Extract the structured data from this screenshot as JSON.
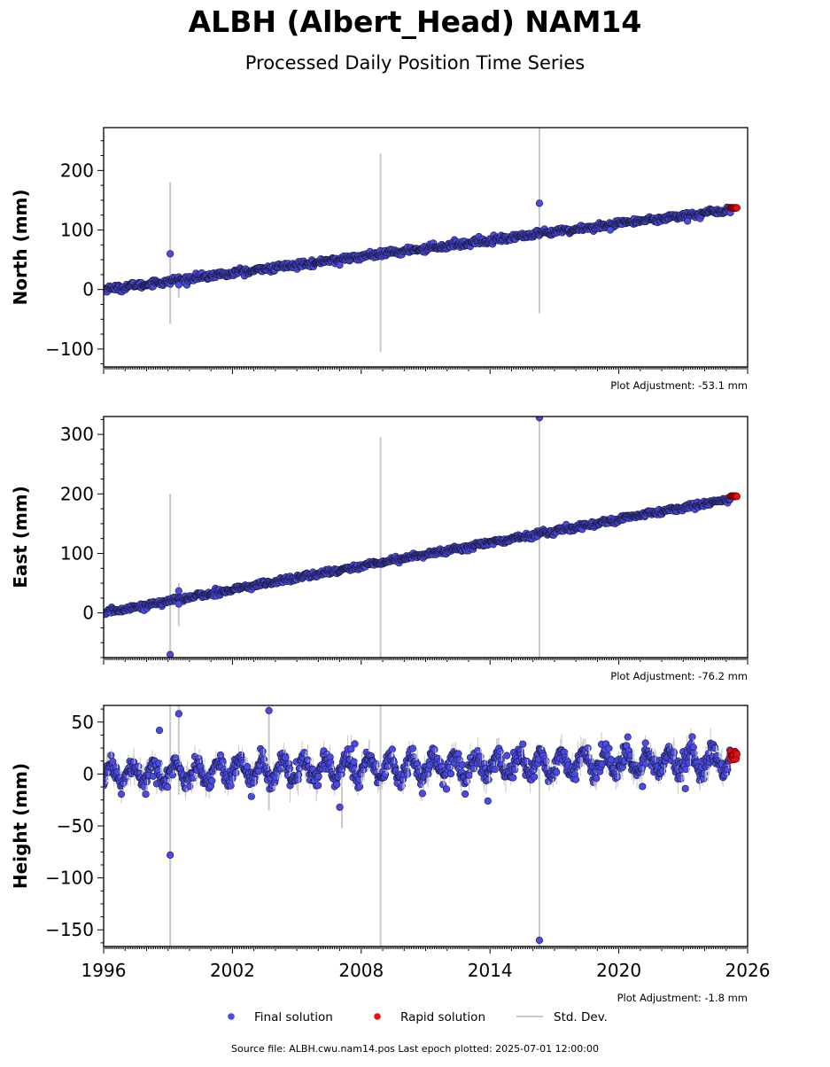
{
  "header": {
    "title": "ALBH (Albert_Head) NAM14",
    "subtitle": "Processed Daily Position Time Series"
  },
  "colors": {
    "final": "#4a4ae6",
    "final_edge": "#1a1a3a",
    "rapid": "#e31212",
    "stddev": "#c8c8c8"
  },
  "legend": {
    "final_label": "Final solution",
    "rapid_label": "Rapid solution",
    "std_label": "Std. Dev."
  },
  "footer": {
    "source": "Source file: ALBH.cwu.nam14.pos  Last epoch plotted: 2025-07-01 12:00:00"
  },
  "chart_data": [
    {
      "type": "scatter",
      "ylabel": "North (mm)",
      "xlim": [
        1996,
        2026
      ],
      "ylim": [
        -130,
        272
      ],
      "yticks": [
        -100,
        0,
        100,
        200
      ],
      "xticks": [
        1996,
        2002,
        2008,
        2014,
        2020,
        2026
      ],
      "show_xtick_labels": false,
      "adjustment": "Plot Adjustment: -53.1 mm",
      "trend": {
        "start": 1996,
        "rate": 4.6,
        "offset": 0
      },
      "seasonal_amplitude": 1.5,
      "noise": 2.5,
      "outliers": [
        {
          "x": 1999.1,
          "y": 60
        },
        {
          "x": 1999.5,
          "y": 8
        },
        {
          "x": 2007.0,
          "y": 41
        },
        {
          "x": 2016.3,
          "y": 145
        },
        {
          "x": 2019.6,
          "y": 100
        },
        {
          "x": 2023.2,
          "y": 115
        }
      ],
      "stddev_bars": [
        {
          "x": 1999.1,
          "y0": -58,
          "y1": 180
        },
        {
          "x": 1999.5,
          "y0": -14,
          "y1": 26
        },
        {
          "x": 2008.9,
          "y0": -105,
          "y1": 228
        },
        {
          "x": 2016.3,
          "y0": -40,
          "y1": 272
        }
      ],
      "rapid": {
        "x0": 2025.2,
        "x1": 2025.5,
        "y": 137
      }
    },
    {
      "type": "scatter",
      "ylabel": "East (mm)",
      "xlim": [
        1996,
        2026
      ],
      "ylim": [
        -75,
        330
      ],
      "yticks": [
        0,
        100,
        200,
        300
      ],
      "xticks": [
        1996,
        2002,
        2008,
        2014,
        2020,
        2026
      ],
      "show_xtick_labels": false,
      "adjustment": "Plot Adjustment: -76.2 mm",
      "trend": {
        "start": 1996,
        "rate": 6.55,
        "offset": 0
      },
      "seasonal_amplitude": 1.5,
      "noise": 2.2,
      "outliers": [
        {
          "x": 1999.1,
          "y": -70
        },
        {
          "x": 1999.5,
          "y": 37
        },
        {
          "x": 1999.5,
          "y": 15
        },
        {
          "x": 2016.3,
          "y": 328
        }
      ],
      "stddev_bars": [
        {
          "x": 1999.1,
          "y0": -75,
          "y1": 200
        },
        {
          "x": 1999.5,
          "y0": -22,
          "y1": 50
        },
        {
          "x": 2008.9,
          "y0": -75,
          "y1": 295
        },
        {
          "x": 2016.3,
          "y0": -75,
          "y1": 330
        }
      ],
      "rapid": {
        "x0": 2025.2,
        "x1": 2025.5,
        "y": 196
      }
    },
    {
      "type": "scatter",
      "ylabel": "Height (mm)",
      "xlim": [
        1996,
        2026
      ],
      "ylim": [
        -166,
        66
      ],
      "yticks": [
        -150,
        -100,
        -50,
        0,
        50
      ],
      "xticks": [
        1996,
        2002,
        2008,
        2014,
        2020,
        2026
      ],
      "xtick_labels": [
        "1996",
        "2002",
        "2008",
        "2014",
        "2020",
        "2026"
      ],
      "show_xtick_labels": true,
      "adjustment": "Plot Adjustment: -1.8 mm",
      "trend": {
        "start": 1996,
        "rate": 0.45,
        "offset": 0
      },
      "seasonal_amplitude": 10,
      "noise": 4.5,
      "outliers": [
        {
          "x": 1998.6,
          "y": 42
        },
        {
          "x": 1999.1,
          "y": -78
        },
        {
          "x": 1999.5,
          "y": 58
        },
        {
          "x": 2003.7,
          "y": 61
        },
        {
          "x": 2007.0,
          "y": -32
        },
        {
          "x": 2007.7,
          "y": 29
        },
        {
          "x": 2016.3,
          "y": -160
        },
        {
          "x": 2013.9,
          "y": -26
        },
        {
          "x": 2021.1,
          "y": -12
        },
        {
          "x": 2023.1,
          "y": -14
        }
      ],
      "stddev_bars": [
        {
          "x": 1999.1,
          "y0": -166,
          "y1": 66
        },
        {
          "x": 2008.9,
          "y0": -166,
          "y1": 66
        },
        {
          "x": 2016.3,
          "y0": -166,
          "y1": 5
        },
        {
          "x": 1999.5,
          "y0": -20,
          "y1": 66
        },
        {
          "x": 2007.1,
          "y0": -52,
          "y1": -12
        },
        {
          "x": 2003.7,
          "y0": -35,
          "y1": 66
        }
      ],
      "rapid": {
        "x0": 2025.2,
        "x1": 2025.5,
        "y": 18,
        "spread": 9
      }
    }
  ]
}
